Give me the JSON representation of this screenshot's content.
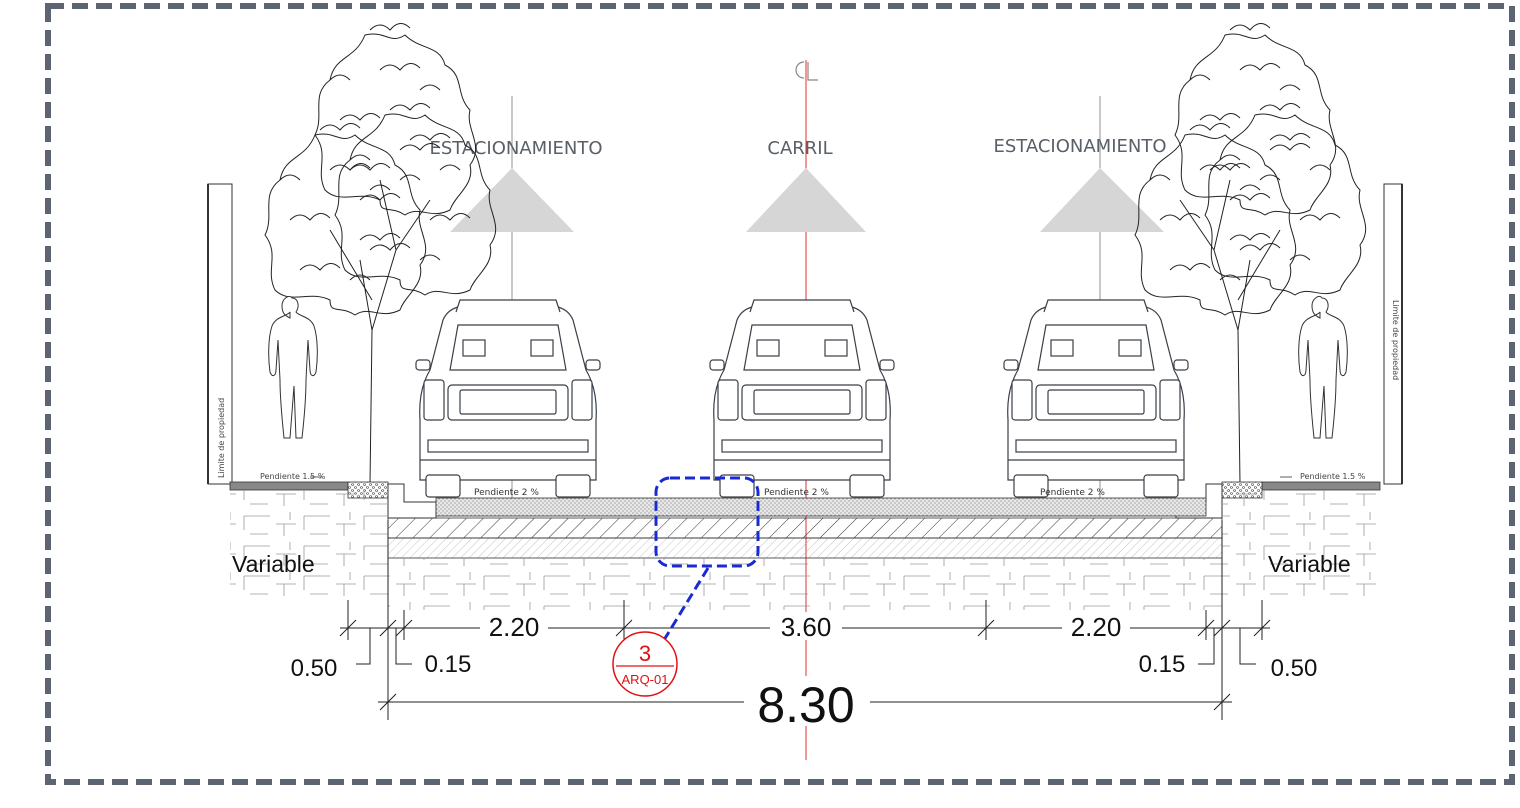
{
  "labels": {
    "centerline": "CL",
    "parking_left": "ESTACIONAMIENTO",
    "lane": "CARRIL",
    "parking_right": "ESTACIONAMIENTO",
    "property_limit": "Limite de propiedad",
    "sidewalk_slope_left": "Pendiente 1.5 %",
    "sidewalk_slope_right": "Pendiente 1.5 %",
    "road_slope_1": "Pendiente 2 %",
    "road_slope_2": "Pendiente 2 %",
    "road_slope_3": "Pendiente 2 %",
    "variable_left": "Variable",
    "variable_right": "Variable"
  },
  "dimensions": {
    "left_parking": "2.20",
    "lane": "3.60",
    "right_parking": "2.20",
    "left_sidewalk": "0.50",
    "left_curb": "0.15",
    "right_curb": "0.15",
    "right_sidewalk": "0.50",
    "total": "8.30"
  },
  "detail_callout": {
    "number": "3",
    "sheet": "ARQ-01",
    "color": "#e01010",
    "leader_color": "#1a2bd6"
  },
  "colors": {
    "frame": "#5b6470",
    "centerline": "#e03030"
  }
}
